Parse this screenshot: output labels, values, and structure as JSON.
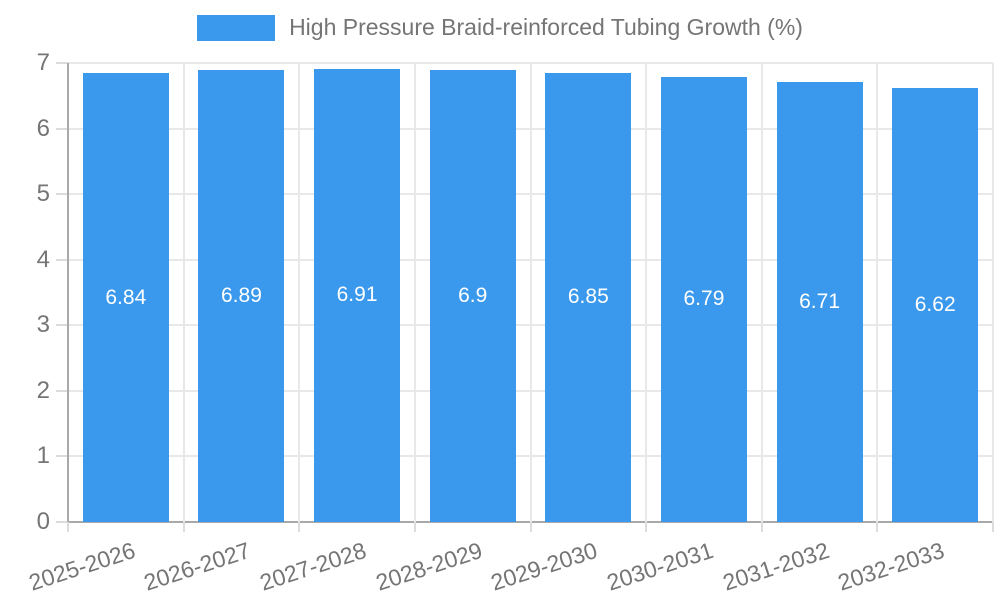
{
  "chart_data": {
    "type": "bar",
    "title": "High Pressure Braid-reinforced Tubing Growth (%)",
    "categories": [
      "2025-2026",
      "2026-2027",
      "2027-2028",
      "2028-2029",
      "2029-2030",
      "2030-2031",
      "2031-2032",
      "2032-2033"
    ],
    "values": [
      6.84,
      6.89,
      6.91,
      6.9,
      6.85,
      6.79,
      6.71,
      6.62
    ],
    "value_labels": [
      "6.84",
      "6.89",
      "6.91",
      "6.9",
      "6.85",
      "6.79",
      "6.71",
      "6.62"
    ],
    "y_ticks": [
      0,
      1,
      2,
      3,
      4,
      5,
      6,
      7
    ],
    "y_tick_labels": [
      "0",
      "1",
      "2",
      "3",
      "4",
      "5",
      "6",
      "7"
    ],
    "ylim": [
      0,
      7
    ],
    "xlabel": "",
    "ylabel": "",
    "grid": true,
    "legend_position": "top",
    "bar_color": "#3A99EC",
    "value_label_color": "#ffffff",
    "axis_text_color": "#757575",
    "gridline_color": "#e8e8e8",
    "axis_line_color": "#a9a9a9"
  }
}
